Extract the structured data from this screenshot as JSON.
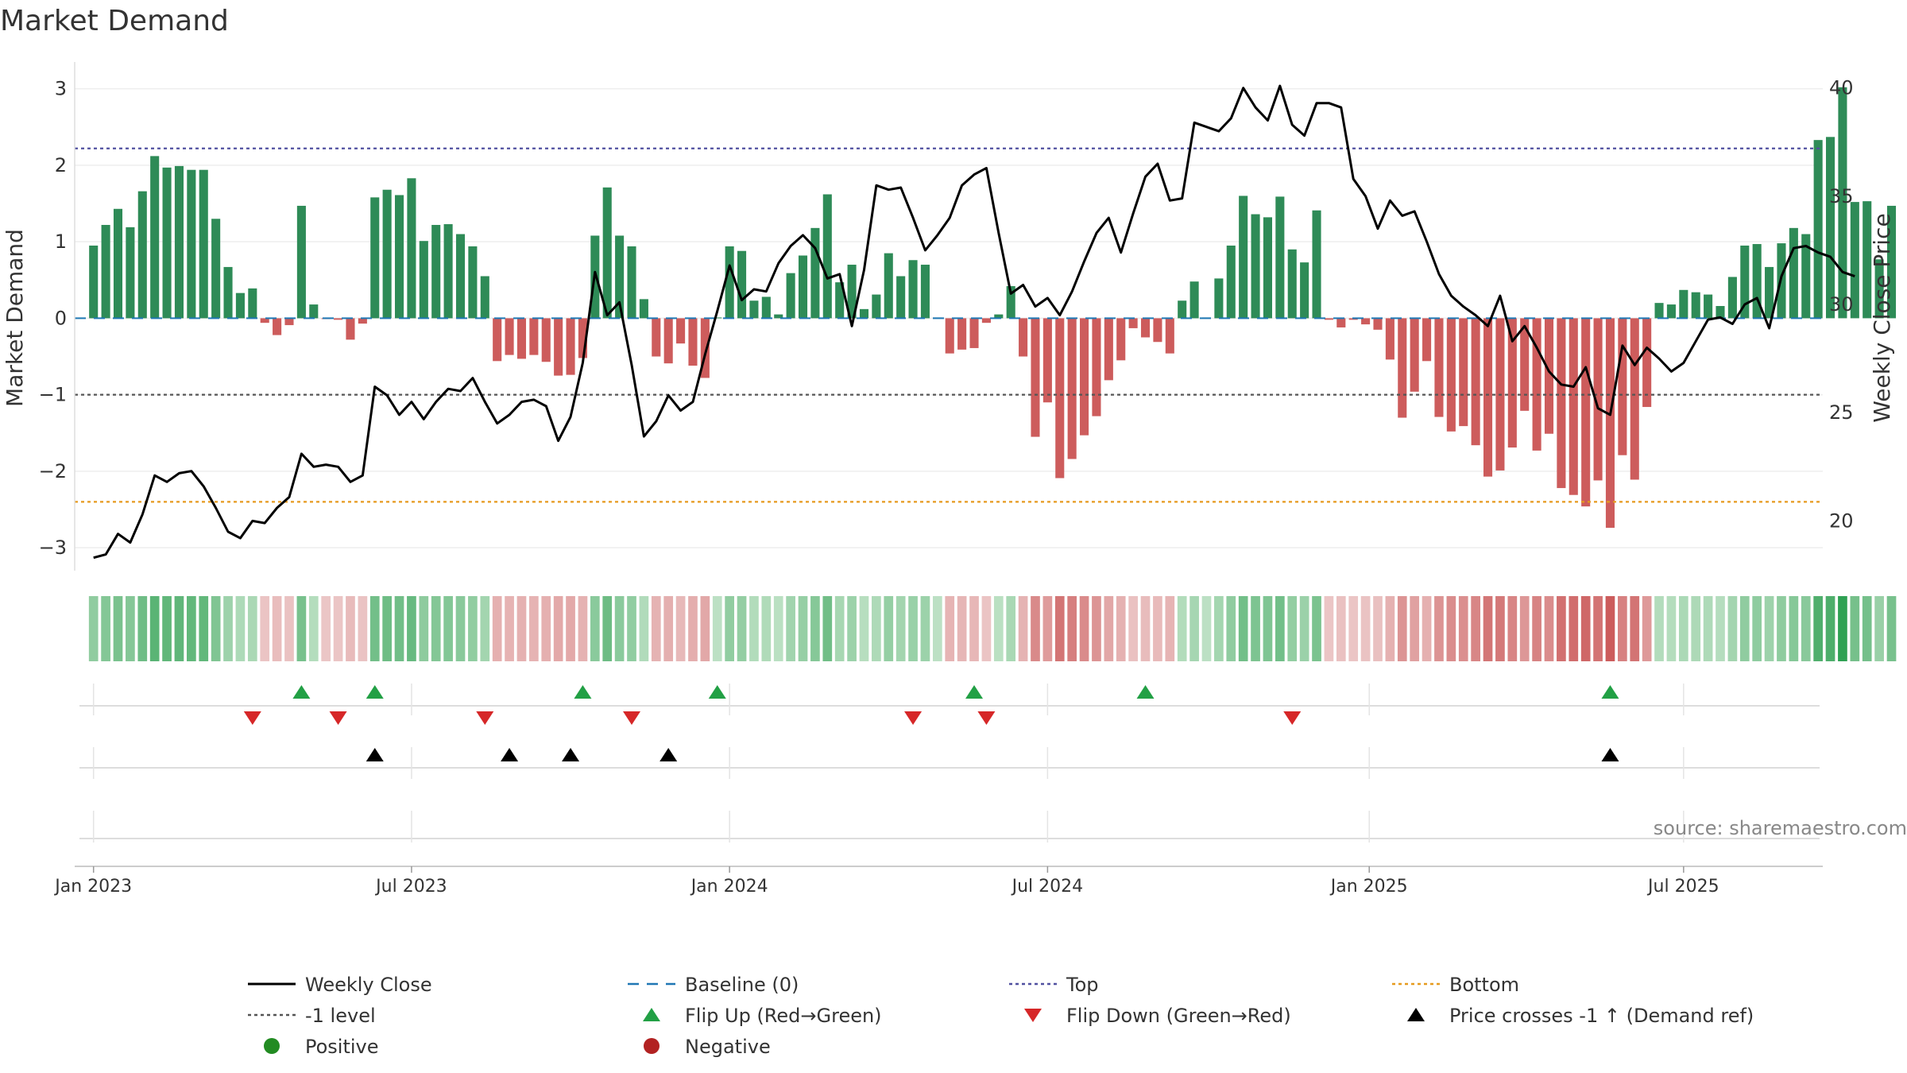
{
  "chart_data": {
    "type": "bar+line",
    "title": "Market Demand",
    "ylabel": "Market Demand",
    "ylabel_right": "Weekly Close Price",
    "ylim": [
      -3.3,
      3.35
    ],
    "ylim_right": [
      17.7,
      41.2
    ],
    "yticks": [
      3,
      2,
      1,
      0,
      -1,
      -2,
      -3
    ],
    "yticks_right": [
      40,
      35,
      30,
      25,
      20
    ],
    "ytick_labels": [
      "3",
      "2",
      "1",
      "0",
      "−1",
      "−2",
      "−3"
    ],
    "ytick_labels_right": [
      "40",
      "35",
      "30",
      "25",
      "20"
    ],
    "x_start_index": -1.54,
    "x_end_index": 141.38,
    "x_tick_labels": [
      "Jan 2023",
      "Jul 2023",
      "Jan 2024",
      "Jul 2024",
      "Jan 2025",
      "Jul 2025"
    ],
    "x_tick_weeks": [
      0,
      26,
      52,
      78,
      104.3,
      130
    ],
    "top_level": 2.22,
    "bottom_level": -2.4,
    "minus_one_level": -1,
    "demand": [
      0.95,
      1.22,
      1.43,
      1.19,
      1.66,
      2.12,
      1.97,
      1.99,
      1.94,
      1.94,
      1.3,
      0.67,
      0.33,
      0.39,
      -0.06,
      -0.22,
      -0.09,
      1.47,
      0.18,
      -0.01,
      -0.02,
      -0.28,
      -0.07,
      1.58,
      1.68,
      1.61,
      1.83,
      1.01,
      1.22,
      1.23,
      1.1,
      0.94,
      0.55,
      -0.56,
      -0.48,
      -0.53,
      -0.48,
      -0.57,
      -0.75,
      -0.74,
      -0.52,
      1.08,
      1.71,
      1.08,
      0.94,
      0.25,
      -0.5,
      -0.59,
      -0.33,
      -0.62,
      -0.78,
      0.01,
      0.94,
      0.88,
      0.23,
      0.28,
      0.05,
      0.59,
      0.82,
      1.18,
      1.62,
      0.47,
      0.7,
      0.12,
      0.31,
      0.85,
      0.55,
      0.76,
      0.7,
      0.01,
      -0.46,
      -0.41,
      -0.39,
      -0.06,
      0.05,
      0.42,
      -0.5,
      -1.55,
      -1.1,
      -2.09,
      -1.84,
      -1.53,
      -1.28,
      -0.81,
      -0.55,
      -0.13,
      -0.25,
      -0.31,
      -0.46,
      0.23,
      0.48,
      0.01,
      0.52,
      0.95,
      1.6,
      1.36,
      1.32,
      1.59,
      0.9,
      0.73,
      1.41,
      -0.02,
      -0.12,
      -0.02,
      -0.08,
      -0.15,
      -0.54,
      -1.3,
      -0.96,
      -0.56,
      -1.29,
      -1.48,
      -1.41,
      -1.66,
      -2.07,
      -1.99,
      -1.69,
      -1.21,
      -1.73,
      -1.51,
      -2.22,
      -2.31,
      -2.46,
      -2.12,
      -2.74,
      -1.79,
      -2.11,
      -1.16,
      0.2,
      0.18,
      0.37,
      0.34,
      0.31,
      0.16,
      0.54,
      0.95,
      0.97,
      0.67,
      0.98,
      1.18,
      1.1,
      2.33,
      2.37,
      3.02,
      1.52,
      1.53,
      0.77,
      1.47
    ],
    "weekly_close": [
      18.3,
      18.45,
      19.4,
      19,
      20.3,
      22.1,
      21.8,
      22.2,
      22.3,
      21.6,
      20.6,
      19.5,
      19.2,
      20,
      19.9,
      20.6,
      21.1,
      23.1,
      22.5,
      22.6,
      22.5,
      21.8,
      22.1,
      26.2,
      25.8,
      24.9,
      25.5,
      24.7,
      25.5,
      26.1,
      26,
      26.6,
      25.5,
      24.5,
      24.9,
      25.5,
      25.6,
      25.3,
      23.7,
      24.8,
      27.3,
      31.5,
      29.5,
      30.1,
      27.2,
      23.9,
      24.6,
      25.8,
      25.1,
      25.5,
      27.7,
      29.7,
      31.8,
      30.2,
      30.7,
      30.6,
      31.9,
      32.7,
      33.2,
      32.6,
      31.2,
      31.4,
      29,
      31.6,
      35.5,
      35.3,
      35.4,
      34,
      32.5,
      33.2,
      34,
      35.5,
      36,
      36.3,
      33.3,
      30.5,
      30.9,
      29.9,
      30.3,
      29.5,
      30.6,
      32,
      33.3,
      34,
      32.4,
      34.2,
      35.9,
      36.5,
      34.8,
      34.9,
      38.4,
      38.2,
      38,
      38.6,
      40,
      39.1,
      38.5,
      40.1,
      38.3,
      37.8,
      39.3,
      39.3,
      39.1,
      35.8,
      35,
      33.5,
      34.8,
      34.1,
      34.3,
      32.9,
      31.4,
      30.4,
      29.9,
      29.5,
      29,
      30.4,
      28.3,
      29,
      28,
      26.9,
      26.3,
      26.2,
      27.1,
      25.2,
      24.9,
      28.1,
      27.2,
      28,
      27.5,
      26.9,
      27.3,
      28.3,
      29.3,
      29.4,
      29.1,
      30,
      30.3,
      28.9,
      31.3,
      32.6,
      32.7,
      32.4,
      32.2,
      31.5,
      31.3
    ],
    "flip_up_weeks": [
      17,
      23,
      40,
      51,
      72,
      86,
      124
    ],
    "flip_down_weeks": [
      13,
      20,
      32,
      44,
      67,
      73,
      98
    ],
    "price_cross_weeks": [
      23,
      34,
      39,
      47,
      124
    ],
    "legend": [
      {
        "label": "Weekly Close",
        "kind": "line"
      },
      {
        "label": "Baseline (0)",
        "kind": "baseline"
      },
      {
        "label": "Top",
        "kind": "top"
      },
      {
        "label": "Bottom",
        "kind": "bottom"
      },
      {
        "label": "-1 level",
        "kind": "minus1"
      },
      {
        "label": "Flip Up (Red→Green)",
        "kind": "flipup"
      },
      {
        "label": "Flip Down (Green→Red)",
        "kind": "flipdown"
      },
      {
        "label": "Price crosses -1 ↑ (Demand ref)",
        "kind": "cross"
      },
      {
        "label": "Positive",
        "kind": "positive"
      },
      {
        "label": "Negative",
        "kind": "negative"
      }
    ],
    "source": "source: sharemaestro.com"
  },
  "colors": {
    "positive_bar": "#2e8b57",
    "negative_bar": "#cd5c5c",
    "weekly_close": "#000000",
    "baseline": "#1f77b4",
    "top": "#5050a0",
    "bottom": "#e69a1e",
    "minus_one": "#555555",
    "flip_up": "#22a045",
    "flip_down": "#d62728",
    "cross": "#000000",
    "positive_dot": "#228b22",
    "negative_dot": "#b22222"
  }
}
